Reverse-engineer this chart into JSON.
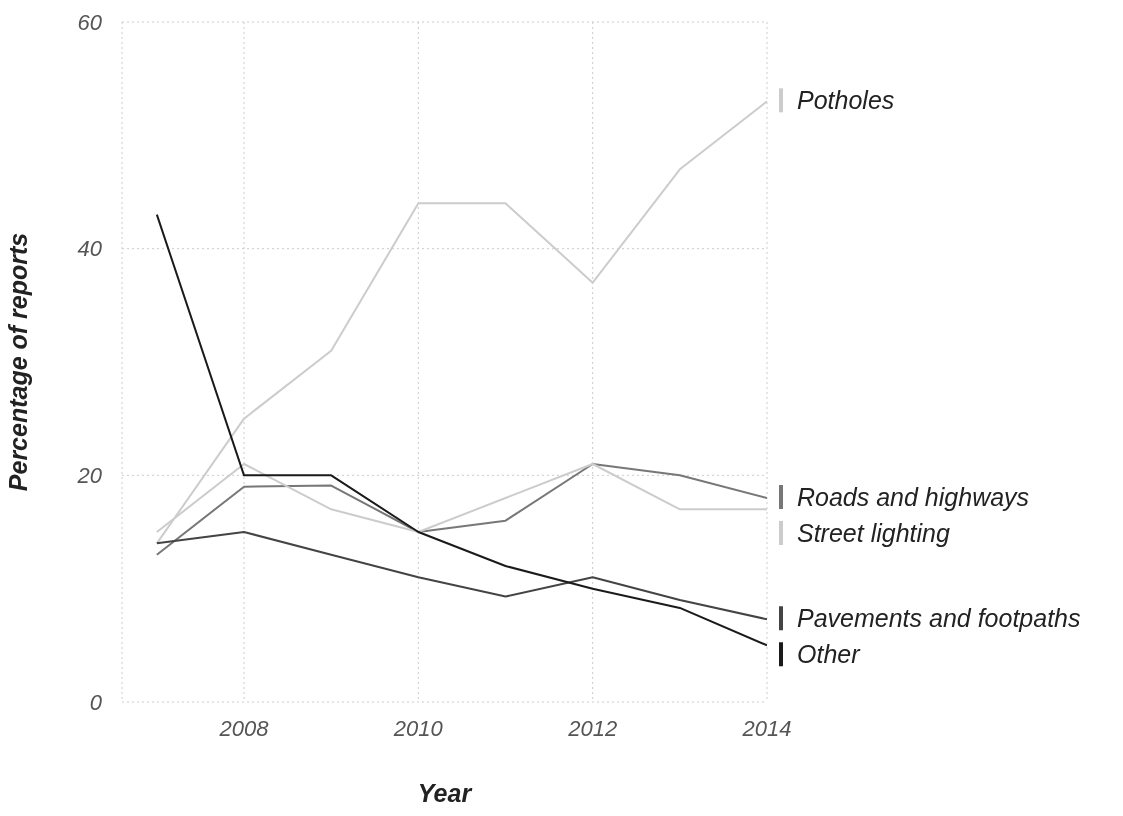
{
  "chart_data": {
    "type": "line",
    "xlabel": "Year",
    "ylabel": "Percentage of reports",
    "x": [
      2007,
      2008,
      2009,
      2010,
      2011,
      2012,
      2013,
      2014
    ],
    "series": [
      {
        "name": "Potholes",
        "color": "#cccccc",
        "values": [
          14,
          25,
          31,
          44,
          44,
          37,
          47,
          53
        ]
      },
      {
        "name": "Roads and highways",
        "color": "#777777",
        "values": [
          13,
          19,
          19.1,
          15,
          16,
          21,
          20,
          18
        ]
      },
      {
        "name": "Street lighting",
        "color": "#cccccc",
        "values": [
          15,
          21,
          17,
          15,
          18,
          21,
          17,
          17
        ]
      },
      {
        "name": "Pavements and footpaths",
        "color": "#444444",
        "values": [
          14,
          15,
          13,
          11,
          9.3,
          11,
          9,
          7.3
        ]
      },
      {
        "name": "Other",
        "color": "#1a1a1a",
        "values": [
          43,
          20,
          20,
          15,
          12,
          10,
          8.3,
          5
        ]
      }
    ],
    "xlim": [
      2006.6,
      2014
    ],
    "xticks": [
      2008,
      2010,
      2012,
      2014
    ],
    "ylim": [
      0,
      60
    ],
    "yticks": [
      0,
      20,
      40,
      60
    ],
    "grid": true,
    "legend": "right",
    "marker": "none",
    "line_style": "solid"
  }
}
